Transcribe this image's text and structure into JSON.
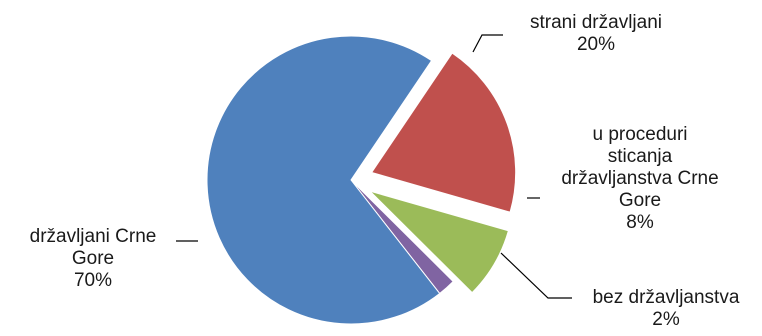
{
  "chart_data": {
    "type": "pie",
    "title": "",
    "slices": [
      {
        "label": "državljani Crne Gore",
        "label_lines": [
          "državljani  Crne",
          "Gore"
        ],
        "value": 70,
        "value_text": "70%",
        "color": "#4F81BD",
        "exploded": false
      },
      {
        "label": "strani državljani",
        "label_lines": [
          "strani državljani"
        ],
        "value": 20,
        "value_text": "20%",
        "color": "#C0504D",
        "exploded": true
      },
      {
        "label": "u proceduri sticanja državljanstva Crne Gore",
        "label_lines": [
          "u proceduri",
          "sticanja",
          "državljanstva Crne",
          "Gore"
        ],
        "value": 8,
        "value_text": "8%",
        "color": "#9BBB59",
        "exploded": true
      },
      {
        "label": "bez državljanstva",
        "label_lines": [
          "bez državljanstva"
        ],
        "value": 2,
        "value_text": "2%",
        "color": "#8064A2",
        "exploded": false
      }
    ],
    "legend": "none",
    "data_labels": "outside with leader lines"
  }
}
